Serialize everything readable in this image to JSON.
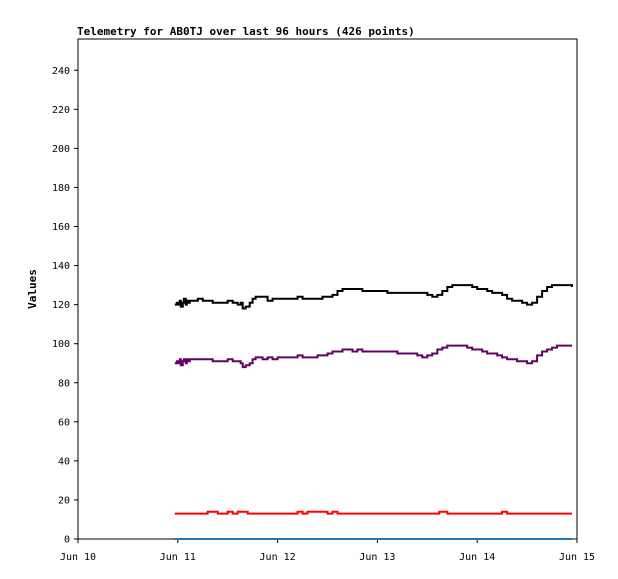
{
  "chart_data": {
    "type": "line",
    "title": "Telemetry for AB0TJ over last 96 hours (426 points)",
    "xlabel": "",
    "ylabel": "Values",
    "x_ticks": [
      "Jun 10",
      "Jun 11",
      "Jun 12",
      "Jun 13",
      "Jun 14",
      "Jun 15"
    ],
    "x_tick_values": [
      0,
      1,
      2,
      3,
      4,
      5
    ],
    "xlim": [
      0,
      5
    ],
    "y_ticks": [
      0,
      20,
      40,
      60,
      80,
      100,
      120,
      140,
      160,
      180,
      200,
      220,
      240
    ],
    "ylim": [
      0,
      256
    ],
    "grid": false,
    "legend": "none",
    "series": [
      {
        "color": "#000000",
        "x": [
          0.97,
          0.99,
          1.0,
          1.02,
          1.03,
          1.05,
          1.06,
          1.08,
          1.09,
          1.1,
          1.12,
          1.15,
          1.2,
          1.25,
          1.3,
          1.35,
          1.4,
          1.45,
          1.5,
          1.55,
          1.6,
          1.63,
          1.65,
          1.68,
          1.7,
          1.72,
          1.75,
          1.78,
          1.8,
          1.85,
          1.9,
          1.95,
          2.0,
          2.05,
          2.1,
          2.15,
          2.2,
          2.25,
          2.3,
          2.35,
          2.4,
          2.45,
          2.5,
          2.55,
          2.6,
          2.65,
          2.7,
          2.75,
          2.8,
          2.85,
          2.9,
          2.95,
          3.0,
          3.05,
          3.1,
          3.15,
          3.2,
          3.25,
          3.3,
          3.35,
          3.4,
          3.45,
          3.5,
          3.55,
          3.6,
          3.65,
          3.7,
          3.75,
          3.8,
          3.85,
          3.9,
          3.95,
          4.0,
          4.05,
          4.1,
          4.15,
          4.2,
          4.25,
          4.3,
          4.35,
          4.4,
          4.45,
          4.5,
          4.55,
          4.6,
          4.65,
          4.7,
          4.75,
          4.8,
          4.85,
          4.9,
          4.95
        ],
        "y": [
          120,
          121,
          120,
          122,
          119,
          121,
          123,
          120,
          122,
          121,
          122,
          122,
          123,
          122,
          122,
          121,
          121,
          121,
          122,
          121,
          120,
          121,
          118,
          119,
          119,
          121,
          123,
          124,
          124,
          124,
          122,
          123,
          123,
          123,
          123,
          123,
          124,
          123,
          123,
          123,
          123,
          124,
          124,
          125,
          127,
          128,
          128,
          128,
          128,
          127,
          127,
          127,
          127,
          127,
          126,
          126,
          126,
          126,
          126,
          126,
          126,
          126,
          125,
          124,
          125,
          127,
          129,
          130,
          130,
          130,
          130,
          129,
          128,
          128,
          127,
          126,
          126,
          125,
          123,
          122,
          122,
          121,
          120,
          121,
          124,
          127,
          129,
          130,
          130,
          130,
          130,
          129
        ]
      },
      {
        "color": "#660066",
        "x": [
          0.97,
          0.99,
          1.0,
          1.02,
          1.03,
          1.05,
          1.06,
          1.08,
          1.09,
          1.1,
          1.12,
          1.15,
          1.2,
          1.25,
          1.3,
          1.35,
          1.4,
          1.45,
          1.5,
          1.55,
          1.6,
          1.63,
          1.65,
          1.68,
          1.7,
          1.72,
          1.75,
          1.78,
          1.8,
          1.85,
          1.9,
          1.95,
          2.0,
          2.05,
          2.1,
          2.15,
          2.2,
          2.25,
          2.3,
          2.35,
          2.4,
          2.45,
          2.5,
          2.55,
          2.6,
          2.65,
          2.7,
          2.75,
          2.8,
          2.85,
          2.9,
          2.95,
          3.0,
          3.05,
          3.1,
          3.15,
          3.2,
          3.25,
          3.3,
          3.35,
          3.4,
          3.45,
          3.5,
          3.55,
          3.6,
          3.65,
          3.7,
          3.75,
          3.8,
          3.85,
          3.9,
          3.95,
          4.0,
          4.05,
          4.1,
          4.15,
          4.2,
          4.25,
          4.3,
          4.35,
          4.4,
          4.45,
          4.5,
          4.55,
          4.6,
          4.65,
          4.7,
          4.75,
          4.8,
          4.85,
          4.9,
          4.95
        ],
        "y": [
          90,
          91,
          90,
          92,
          89,
          91,
          92,
          90,
          92,
          91,
          92,
          92,
          92,
          92,
          92,
          91,
          91,
          91,
          92,
          91,
          91,
          90,
          88,
          89,
          89,
          90,
          92,
          93,
          93,
          92,
          93,
          92,
          93,
          93,
          93,
          93,
          94,
          93,
          93,
          93,
          94,
          94,
          95,
          96,
          96,
          97,
          97,
          96,
          97,
          96,
          96,
          96,
          96,
          96,
          96,
          96,
          95,
          95,
          95,
          95,
          94,
          93,
          94,
          95,
          97,
          98,
          99,
          99,
          99,
          99,
          98,
          97,
          97,
          96,
          95,
          95,
          94,
          93,
          92,
          92,
          91,
          91,
          90,
          91,
          94,
          96,
          97,
          98,
          99,
          99,
          99,
          99
        ]
      },
      {
        "color": "#ff0000",
        "x": [
          0.97,
          1.2,
          1.3,
          1.4,
          1.5,
          1.55,
          1.6,
          1.65,
          1.7,
          2.0,
          2.1,
          2.2,
          2.25,
          2.3,
          2.35,
          2.5,
          2.55,
          2.6,
          3.0,
          3.2,
          3.6,
          3.62,
          3.65,
          3.7,
          4.0,
          4.2,
          4.25,
          4.3,
          4.95
        ],
        "y": [
          13,
          13,
          14,
          13,
          14,
          13,
          14,
          14,
          13,
          13,
          13,
          14,
          13,
          14,
          14,
          13,
          14,
          13,
          13,
          13,
          13,
          14,
          14,
          13,
          13,
          13,
          14,
          13,
          13
        ]
      },
      {
        "color": "#1f77b4",
        "x": [
          0.97,
          4.95
        ],
        "y": [
          0,
          0
        ]
      }
    ]
  }
}
